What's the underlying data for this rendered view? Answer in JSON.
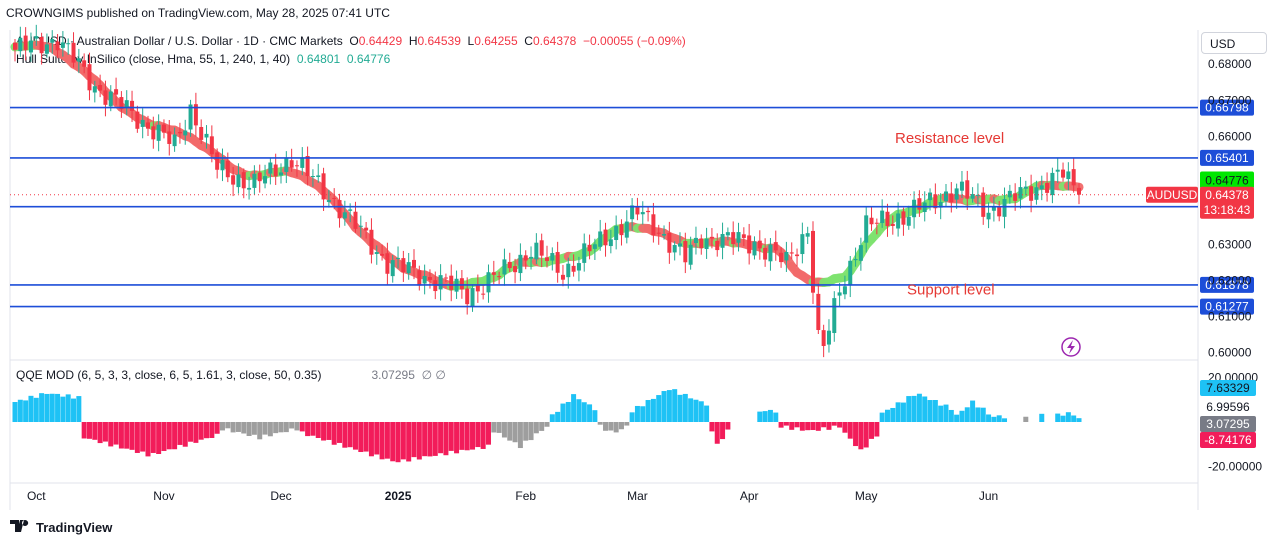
{
  "header": {
    "publisher": "CROWNGIMS published on TradingView.com, May 28, 2025 07:41 UTC"
  },
  "legend": {
    "symbol_line": "AUDUSD · Australian Dollar / U.S. Dollar · 1D · CMC Markets",
    "o_label": "O",
    "o_value": "0.64429",
    "h_label": "H",
    "h_value": "0.64539",
    "l_label": "L",
    "l_value": "0.64255",
    "c_label": "C",
    "c_value": "0.64378",
    "change": "−0.00055 (−0.09%)",
    "hull_line": "Hull Suite by InSilico (close, Hma, 55, 1, 240, 1, 40)",
    "hull_v1": "0.64801",
    "hull_v2": "0.64776",
    "qqe_line": "QQE MOD (6, 5, 3, 3, close, 6, 5, 1.61, 3, close, 50, 0.35)",
    "qqe_value": "3.07295",
    "qqe_icons": "∅ ∅"
  },
  "currency_button": "USD",
  "footer": {
    "brand": "TradingView",
    "logo_icon": "tradingview-logo-icon"
  },
  "colors": {
    "up": "#22ab94",
    "down": "#f23645",
    "hull_up": "#7ee36f",
    "hull_down": "#f26a6a",
    "level": "#1d4ed8",
    "qqe_blue": "#1ec2f5",
    "qqe_red": "#f21c5a",
    "qqe_grey": "#9e9e9e",
    "annotation": "#e53935"
  },
  "chart_data": [
    {
      "type": "candlestick",
      "title": "AUDUSD · Australian Dollar / U.S. Dollar · 1D · CMC Markets",
      "x_ticks": [
        "Oct",
        "Nov",
        "Dec",
        "2025",
        "Feb",
        "Mar",
        "Apr",
        "May",
        "Jun"
      ],
      "y_ticks": [
        "0.68000",
        "0.67000",
        "0.66000",
        "0.64000",
        "0.63000",
        "0.62000",
        "0.61000",
        "0.60000"
      ],
      "ylim": [
        0.5985,
        0.6895
      ],
      "levels": [
        {
          "label": "0.66798",
          "value": 0.66798
        },
        {
          "label": "0.65401",
          "value": 0.65401
        },
        {
          "label": "0.64048",
          "value": 0.64048
        },
        {
          "label": "0.61878",
          "value": 0.61878
        },
        {
          "label": "0.61277",
          "value": 0.61277
        }
      ],
      "price_labels": [
        {
          "text": "0.64801",
          "value": 0.64801,
          "kind": "hull"
        },
        {
          "text": "0.64776",
          "value": 0.64776,
          "kind": "hull"
        },
        {
          "text": "0.64378",
          "value": 0.64378,
          "kind": "last",
          "symbol": "AUDUSD",
          "countdown": "13:18:43"
        }
      ],
      "annotations": [
        {
          "text": "Resistance level",
          "near": 0.6595
        },
        {
          "text": "Support level",
          "near": 0.6175
        }
      ],
      "anchors": [
        {
          "i": 0,
          "close": 0.684
        },
        {
          "i": 8,
          "close": 0.687
        },
        {
          "i": 15,
          "close": 0.674
        },
        {
          "i": 30,
          "close": 0.6575
        },
        {
          "i": 33,
          "close": 0.668
        },
        {
          "i": 38,
          "close": 0.651
        },
        {
          "i": 45,
          "close": 0.6465
        },
        {
          "i": 52,
          "close": 0.654
        },
        {
          "i": 60,
          "close": 0.642
        },
        {
          "i": 70,
          "close": 0.625
        },
        {
          "i": 80,
          "close": 0.6195
        },
        {
          "i": 85,
          "close": 0.6165
        },
        {
          "i": 90,
          "close": 0.6205
        },
        {
          "i": 97,
          "close": 0.6285
        },
        {
          "i": 103,
          "close": 0.6225
        },
        {
          "i": 109,
          "close": 0.6295
        },
        {
          "i": 117,
          "close": 0.639
        },
        {
          "i": 121,
          "close": 0.634
        },
        {
          "i": 126,
          "close": 0.626
        },
        {
          "i": 129,
          "close": 0.632
        },
        {
          "i": 139,
          "close": 0.6305
        },
        {
          "i": 145,
          "close": 0.625
        },
        {
          "i": 149,
          "close": 0.6345
        },
        {
          "i": 151,
          "close": 0.6035
        },
        {
          "i": 152,
          "close": 0.601
        },
        {
          "i": 155,
          "close": 0.6175
        },
        {
          "i": 160,
          "close": 0.635
        },
        {
          "i": 168,
          "close": 0.6385
        },
        {
          "i": 177,
          "close": 0.6455
        },
        {
          "i": 183,
          "close": 0.6395
        },
        {
          "i": 190,
          "close": 0.6445
        },
        {
          "i": 197,
          "close": 0.6495
        },
        {
          "i": 200,
          "close": 0.6438
        }
      ],
      "candle_count": 201
    },
    {
      "type": "bar",
      "title": "QQE MOD",
      "y_ticks": [
        "20.00000",
        "0.00000",
        "-20.00000"
      ],
      "ylim": [
        -27,
        27
      ],
      "value_labels": [
        {
          "text": "7.63329",
          "value": 7.63329,
          "kind": "blue"
        },
        {
          "text": "6.99596",
          "value": 6.99596,
          "kind": "plain"
        },
        {
          "text": "3.07295",
          "value": 3.07295,
          "kind": "grey"
        },
        {
          "text": "-8.74176",
          "value": -8.74176,
          "kind": "red"
        }
      ],
      "segments": [
        {
          "from": 0,
          "to": 12,
          "start": 9,
          "peak": 13,
          "end": 11,
          "color": "blue"
        },
        {
          "from": 13,
          "to": 38,
          "start": -7,
          "peak": -15,
          "end": -6,
          "color": "red"
        },
        {
          "from": 39,
          "to": 53,
          "start": -3,
          "peak": -7,
          "end": -3,
          "color": "grey"
        },
        {
          "from": 54,
          "to": 89,
          "start": -5,
          "peak": -18,
          "end": -11,
          "color": "red"
        },
        {
          "from": 90,
          "to": 100,
          "start": -4,
          "peak": -11,
          "end": -2,
          "color": "grey"
        },
        {
          "from": 101,
          "to": 109,
          "start": 3,
          "peak": 12,
          "end": 6,
          "color": "blue"
        },
        {
          "from": 110,
          "to": 115,
          "start": -2,
          "peak": -5,
          "end": -2,
          "color": "grey"
        },
        {
          "from": 116,
          "to": 130,
          "start": 5,
          "peak": 15,
          "end": 8,
          "color": "blue"
        },
        {
          "from": 131,
          "to": 134,
          "start": -5,
          "peak": -11,
          "end": -3,
          "color": "red"
        },
        {
          "from": 135,
          "to": 139,
          "start": 0,
          "peak": 0,
          "end": 0,
          "color": "none"
        },
        {
          "from": 140,
          "to": 143,
          "start": 4,
          "peak": 6,
          "end": 4,
          "color": "blue"
        },
        {
          "from": 144,
          "to": 155,
          "start": -2,
          "peak": -4,
          "end": -2,
          "color": "red"
        },
        {
          "from": 156,
          "to": 162,
          "start": -5,
          "peak": -13,
          "end": -6,
          "color": "red"
        },
        {
          "from": 163,
          "to": 176,
          "start": 4,
          "peak": 13,
          "end": 6,
          "color": "blue"
        },
        {
          "from": 177,
          "to": 183,
          "start": 3,
          "peak": 9,
          "end": 4,
          "color": "blue"
        },
        {
          "from": 184,
          "to": 186,
          "start": 2,
          "peak": 3,
          "end": 2,
          "color": "blue"
        },
        {
          "from": 190,
          "to": 190,
          "start": 2,
          "peak": 3,
          "end": 2,
          "color": "grey"
        },
        {
          "from": 193,
          "to": 193,
          "start": 3,
          "peak": 4,
          "end": 3,
          "color": "blue"
        },
        {
          "from": 196,
          "to": 200,
          "start": 3,
          "peak": 4,
          "end": 2,
          "color": "blue"
        }
      ]
    }
  ]
}
